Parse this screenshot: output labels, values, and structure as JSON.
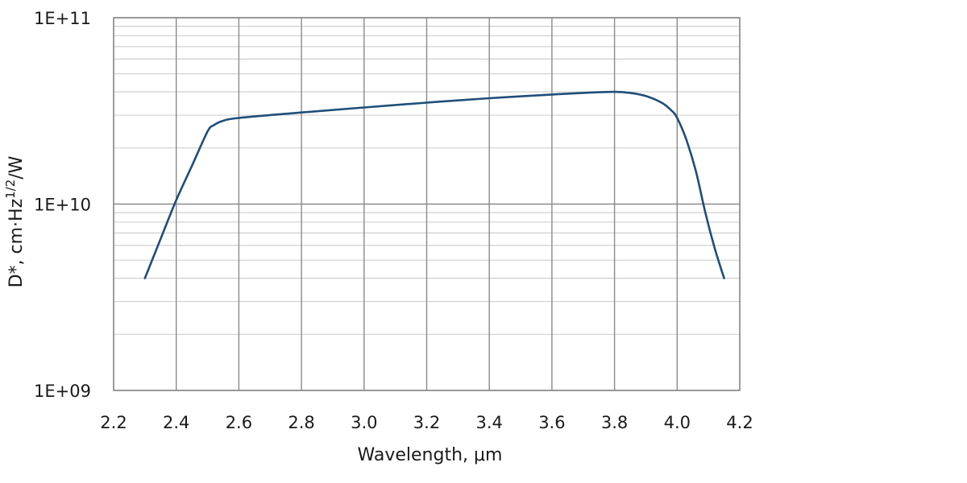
{
  "chart_data": {
    "type": "line",
    "title": "",
    "xlabel": "Wavelength, μm",
    "ylabel": "D*, cm·Hz",
    "ylabel_sup": "1/2",
    "ylabel_end": "/W",
    "xlim": [
      2.2,
      4.2
    ],
    "ylim": [
      1000000000.0,
      100000000000.0
    ],
    "yscale": "log",
    "grid": true,
    "x_ticks": [
      2.2,
      2.4,
      2.6,
      2.8,
      3.0,
      3.2,
      3.4,
      3.6,
      3.8,
      4.0,
      4.2
    ],
    "x_tick_labels": [
      "2.2",
      "2.4",
      "2.6",
      "2.8",
      "3.0",
      "3.2",
      "3.4",
      "3.6",
      "3.8",
      "4.0",
      "4.2"
    ],
    "y_ticks": [
      1000000000.0,
      10000000000.0,
      100000000000.0
    ],
    "y_tick_labels": [
      "1E+09",
      "1E+10",
      "1E+11"
    ],
    "series": [
      {
        "color": "#1f4e79",
        "x": [
          2.3,
          2.35,
          2.4,
          2.45,
          2.5,
          2.52,
          2.55,
          2.6,
          2.8,
          3.0,
          3.2,
          3.4,
          3.6,
          3.7,
          3.8,
          3.85,
          3.9,
          3.95,
          3.98,
          4.0,
          4.03,
          4.06,
          4.09,
          4.12,
          4.15
        ],
        "y": [
          4000000000.0,
          6500000000.0,
          10500000000.0,
          16000000000.0,
          24500000000.0,
          26500000000.0,
          28000000000.0,
          29000000000.0,
          31000000000.0,
          33000000000.0,
          35000000000.0,
          37000000000.0,
          38700000000.0,
          39500000000.0,
          40000000000.0,
          39500000000.0,
          38000000000.0,
          35000000000.0,
          32000000000.0,
          29000000000.0,
          22000000000.0,
          15000000000.0,
          9000000000.0,
          5800000000.0,
          4000000000.0
        ]
      }
    ]
  }
}
